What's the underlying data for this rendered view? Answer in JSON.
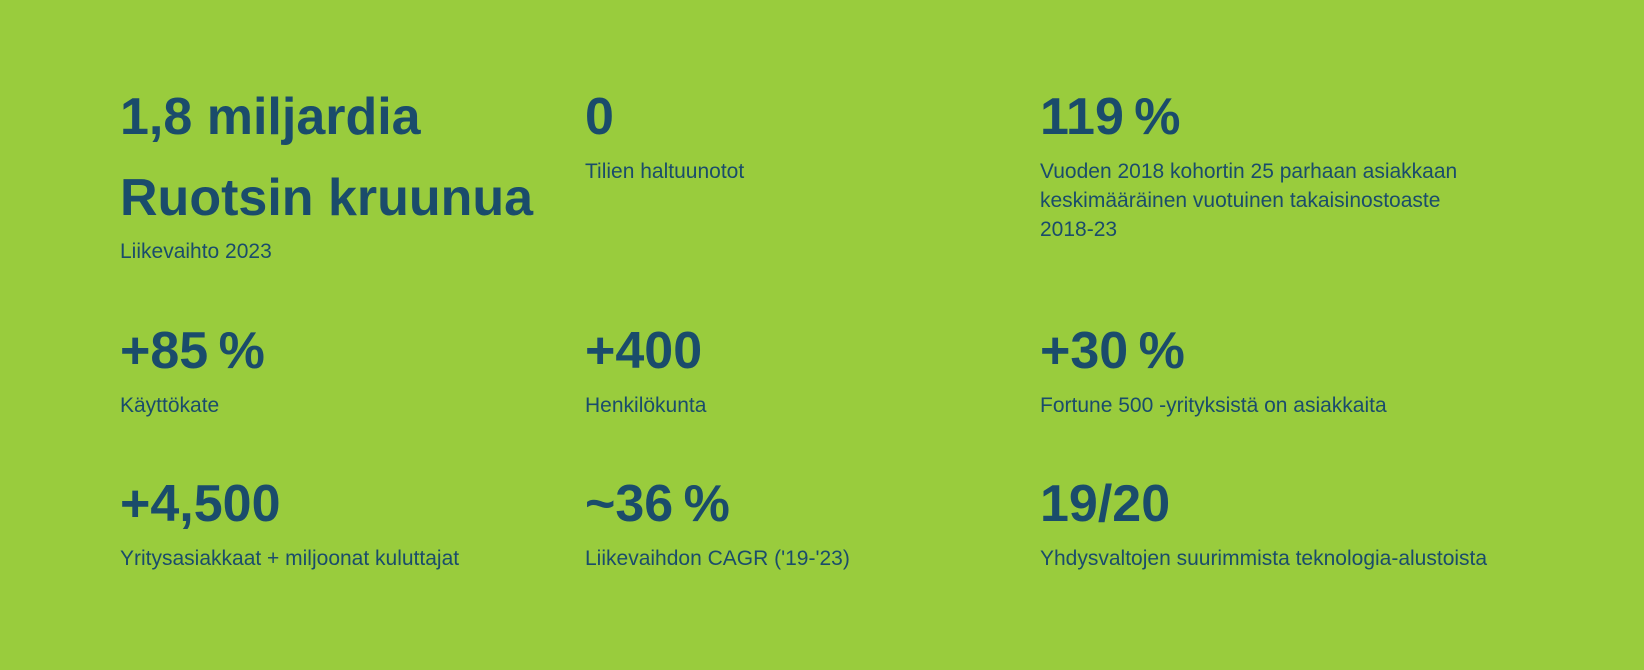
{
  "theme": {
    "background": "#99CC3D",
    "text": "#1A4C6B"
  },
  "stats": [
    {
      "value": "1,8 miljardia Ruotsin kruunua",
      "label": "Liikevaihto 2023"
    },
    {
      "value": "0",
      "label": "Tilien haltuunotot"
    },
    {
      "value": "119 %",
      "label": "Vuoden 2018 kohortin 25 parhaan asiakkaan keskimääräinen vuotuinen takaisinostoaste 2018-23"
    },
    {
      "value": "+85 %",
      "label": "Käyttökate"
    },
    {
      "value": "+400",
      "label": "Henkilökunta"
    },
    {
      "value": "+30 %",
      "label": "Fortune 500 -yrityksistä on asiakkaita"
    },
    {
      "value": "+4,500",
      "label": "Yritysasiakkaat + miljoonat kuluttajat"
    },
    {
      "value": "~36 %",
      "label": "Liikevaihdon CAGR ('19-'23)"
    },
    {
      "value": "19/20",
      "label": "Yhdysvaltojen suurimmista teknologia-alustoista"
    }
  ]
}
